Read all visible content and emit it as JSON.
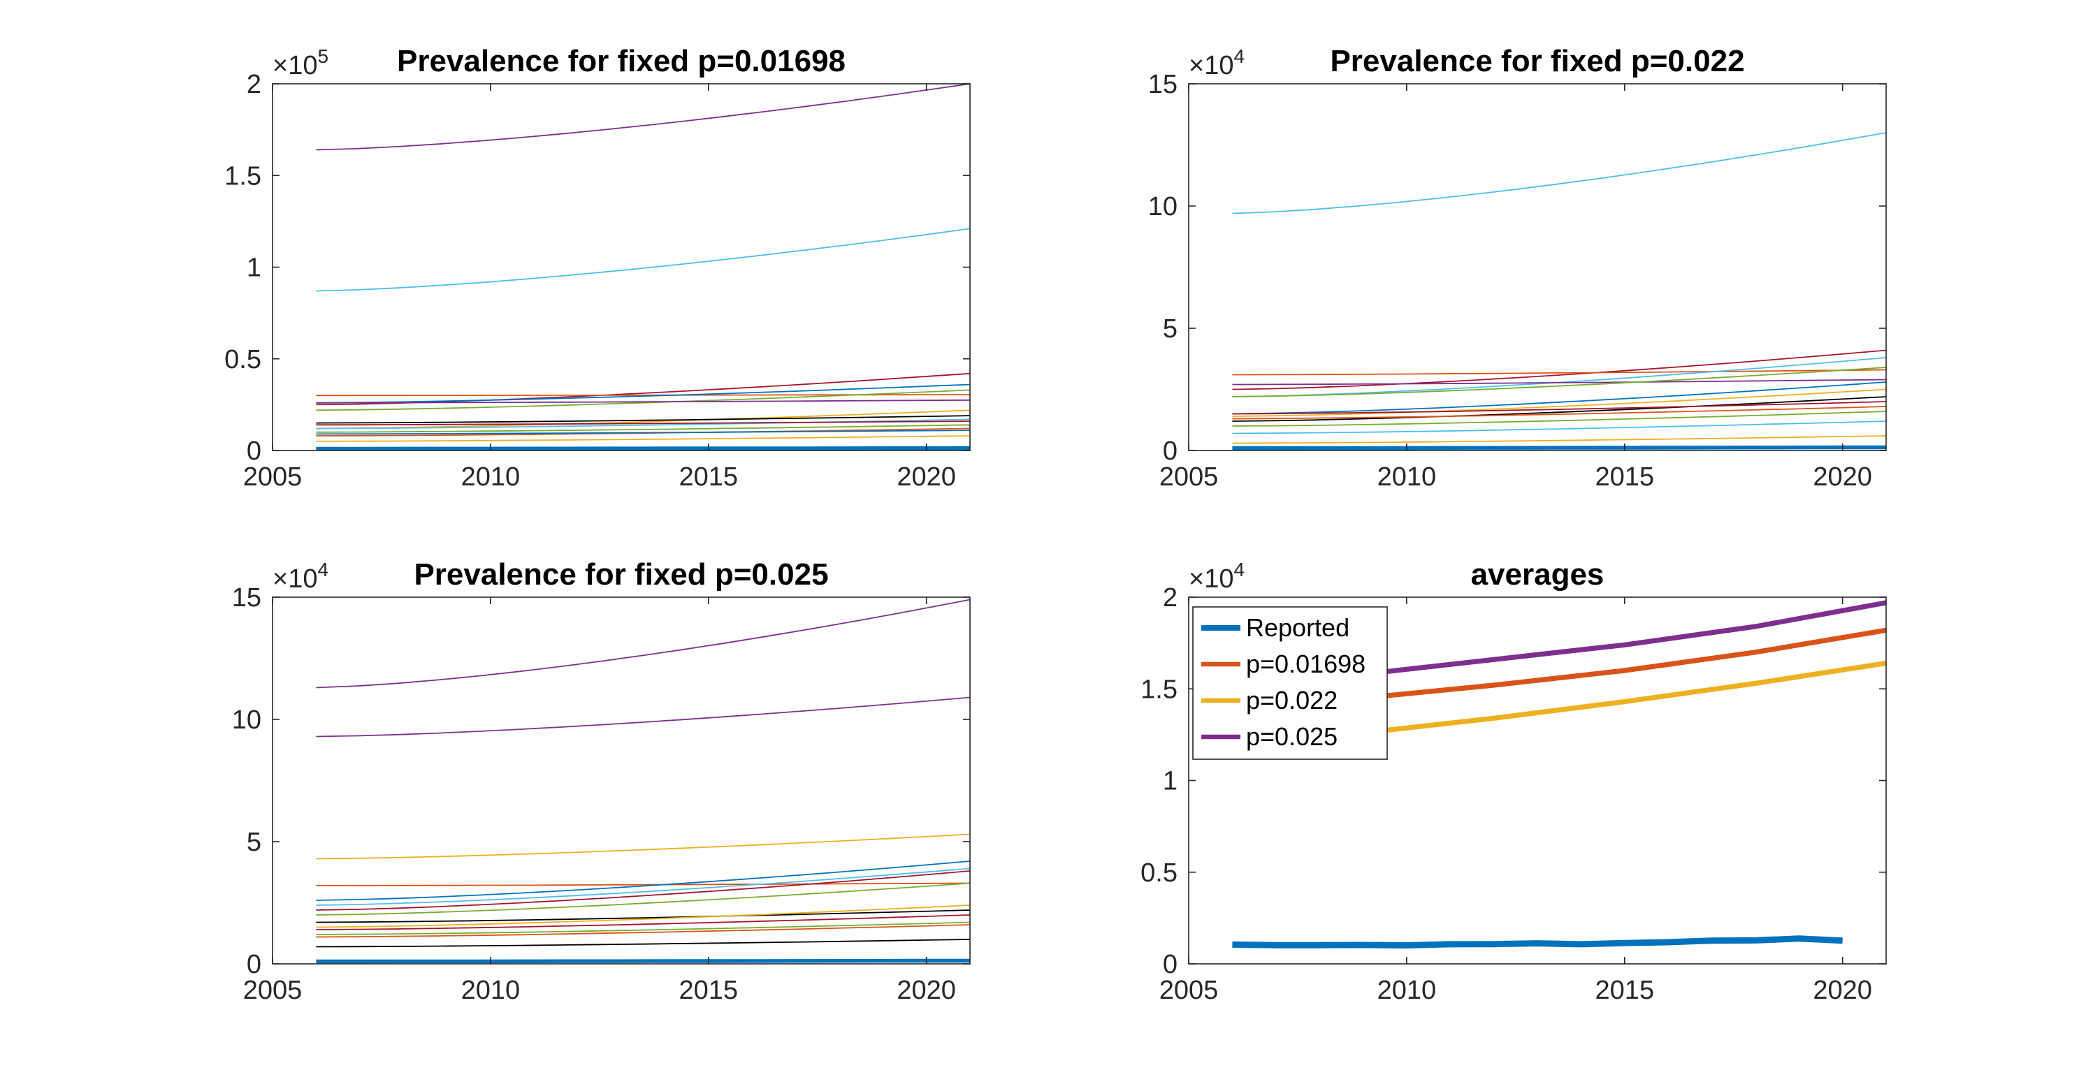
{
  "chart_data": [
    {
      "type": "line",
      "title": "Prevalence for fixed p=0.01698",
      "xlim": [
        2005,
        2021
      ],
      "ylim": [
        0,
        200000
      ],
      "exponent": "5",
      "x_ticks": [
        2005,
        2010,
        2015,
        2020
      ],
      "y_ticks": [
        0,
        50000,
        100000,
        150000,
        200000
      ],
      "x_tick_labels": [
        "2005",
        "2010",
        "2015",
        "2020"
      ],
      "y_tick_labels": [
        "0",
        "0.5",
        "1",
        "1.5",
        "2"
      ],
      "x": [
        2006,
        2021
      ],
      "series": [
        {
          "color": "#7E2F8E",
          "width": 1,
          "values": [
            164000,
            200000
          ]
        },
        {
          "color": "#4DBEEE",
          "width": 1,
          "values": [
            87000,
            121000
          ]
        },
        {
          "color": "#A2142F",
          "width": 1,
          "values": [
            25000,
            42000
          ]
        },
        {
          "color": "#D95319",
          "width": 1,
          "values": [
            30000,
            30500
          ]
        },
        {
          "color": "#0072BD",
          "width": 1,
          "values": [
            26000,
            36000
          ]
        },
        {
          "color": "#77AC30",
          "width": 1,
          "values": [
            22000,
            33000
          ]
        },
        {
          "color": "#7E2F8E",
          "width": 1,
          "values": [
            26000,
            27500
          ]
        },
        {
          "color": "#EDB120",
          "width": 1,
          "values": [
            12000,
            22000
          ]
        },
        {
          "color": "#000000",
          "width": 1,
          "values": [
            15000,
            19000
          ]
        },
        {
          "color": "#4DBEEE",
          "width": 1,
          "values": [
            12000,
            17000
          ]
        },
        {
          "color": "#A2142F",
          "width": 1,
          "values": [
            14000,
            16000
          ]
        },
        {
          "color": "#77AC30",
          "width": 1,
          "values": [
            10000,
            14000
          ]
        },
        {
          "color": "#D95319",
          "width": 1,
          "values": [
            8000,
            12000
          ]
        },
        {
          "color": "#EDB120",
          "width": 1,
          "values": [
            5000,
            8000
          ]
        },
        {
          "color": "#0072BD",
          "width": 1,
          "values": [
            9000,
            11000
          ]
        },
        {
          "color": "#0072BD",
          "width": 3,
          "values": [
            1000,
            1300
          ]
        }
      ]
    },
    {
      "type": "line",
      "title": "Prevalence for fixed p=0.022",
      "xlim": [
        2005,
        2021
      ],
      "ylim": [
        0,
        150000
      ],
      "exponent": "4",
      "x_ticks": [
        2005,
        2010,
        2015,
        2020
      ],
      "y_ticks": [
        0,
        50000,
        100000,
        150000
      ],
      "x_tick_labels": [
        "2005",
        "2010",
        "2015",
        "2020"
      ],
      "y_tick_labels": [
        "0",
        "5",
        "10",
        "15"
      ],
      "x": [
        2006,
        2021
      ],
      "series": [
        {
          "color": "#4DBEEE",
          "width": 1,
          "values": [
            97000,
            130000
          ]
        },
        {
          "color": "#A2142F",
          "width": 1,
          "values": [
            25000,
            41000
          ]
        },
        {
          "color": "#D95319",
          "width": 1,
          "values": [
            31000,
            33000
          ]
        },
        {
          "color": "#4DBEEE",
          "width": 1,
          "values": [
            22000,
            38000
          ]
        },
        {
          "color": "#7E2F8E",
          "width": 1,
          "values": [
            27000,
            29000
          ]
        },
        {
          "color": "#77AC30",
          "width": 1,
          "values": [
            22000,
            34000
          ]
        },
        {
          "color": "#0072BD",
          "width": 1,
          "values": [
            15000,
            28000
          ]
        },
        {
          "color": "#EDB120",
          "width": 1,
          "values": [
            14000,
            25000
          ]
        },
        {
          "color": "#000000",
          "width": 1,
          "values": [
            12000,
            22000
          ]
        },
        {
          "color": "#A2142F",
          "width": 1,
          "values": [
            15000,
            20000
          ]
        },
        {
          "color": "#77AC30",
          "width": 1,
          "values": [
            10000,
            16000
          ]
        },
        {
          "color": "#D95319",
          "width": 1,
          "values": [
            13000,
            18000
          ]
        },
        {
          "color": "#4DBEEE",
          "width": 1,
          "values": [
            7000,
            12000
          ]
        },
        {
          "color": "#EDB120",
          "width": 1,
          "values": [
            3000,
            6000
          ]
        },
        {
          "color": "#0072BD",
          "width": 3,
          "values": [
            1000,
            1300
          ]
        }
      ]
    },
    {
      "type": "line",
      "title": "Prevalence for fixed p=0.025",
      "xlim": [
        2005,
        2021
      ],
      "ylim": [
        0,
        150000
      ],
      "exponent": "4",
      "x_ticks": [
        2005,
        2010,
        2015,
        2020
      ],
      "y_ticks": [
        0,
        50000,
        100000,
        150000
      ],
      "x_tick_labels": [
        "2005",
        "2010",
        "2015",
        "2020"
      ],
      "y_tick_labels": [
        "0",
        "5",
        "10",
        "15"
      ],
      "x": [
        2006,
        2021
      ],
      "series": [
        {
          "color": "#7E2F8E",
          "width": 1,
          "values": [
            113000,
            149000
          ]
        },
        {
          "color": "#7E2F8E",
          "width": 1,
          "values": [
            93000,
            109000
          ]
        },
        {
          "color": "#EDB120",
          "width": 1,
          "values": [
            43000,
            53000
          ]
        },
        {
          "color": "#D95319",
          "width": 1,
          "values": [
            32000,
            33000
          ]
        },
        {
          "color": "#0072BD",
          "width": 1,
          "values": [
            26000,
            42000
          ]
        },
        {
          "color": "#4DBEEE",
          "width": 1,
          "values": [
            24000,
            39000
          ]
        },
        {
          "color": "#A2142F",
          "width": 1,
          "values": [
            22000,
            38000
          ]
        },
        {
          "color": "#77AC30",
          "width": 1,
          "values": [
            20000,
            33000
          ]
        },
        {
          "color": "#000000",
          "width": 1,
          "values": [
            17000,
            22000
          ]
        },
        {
          "color": "#EDB120",
          "width": 1,
          "values": [
            15000,
            24000
          ]
        },
        {
          "color": "#A2142F",
          "width": 1,
          "values": [
            14000,
            20000
          ]
        },
        {
          "color": "#77AC30",
          "width": 1,
          "values": [
            12000,
            17000
          ]
        },
        {
          "color": "#D95319",
          "width": 1,
          "values": [
            11000,
            16000
          ]
        },
        {
          "color": "#000000",
          "width": 1,
          "values": [
            7000,
            10000
          ]
        },
        {
          "color": "#0072BD",
          "width": 3,
          "values": [
            1000,
            1300
          ]
        }
      ]
    },
    {
      "type": "line",
      "title": "averages",
      "xlim": [
        2005,
        2021
      ],
      "ylim": [
        0,
        20000
      ],
      "exponent": "4",
      "x_ticks": [
        2005,
        2010,
        2015,
        2020
      ],
      "y_ticks": [
        0,
        5000,
        10000,
        15000,
        20000
      ],
      "x_tick_labels": [
        "2005",
        "2010",
        "2015",
        "2020"
      ],
      "y_tick_labels": [
        "0",
        "0.5",
        "1",
        "1.5",
        "2"
      ],
      "legend_position": "top-left",
      "series": [
        {
          "name": "Reported",
          "color": "#0072BD",
          "width": 5,
          "x": [
            2006,
            2007,
            2008,
            2009,
            2010,
            2011,
            2012,
            2013,
            2014,
            2015,
            2016,
            2017,
            2018,
            2019,
            2020
          ],
          "values": [
            1050,
            1020,
            1020,
            1030,
            1010,
            1070,
            1080,
            1120,
            1070,
            1130,
            1180,
            1270,
            1280,
            1380,
            1270
          ]
        },
        {
          "name": "p=0.01698",
          "color": "#D95319",
          "width": 4,
          "x": [
            2006,
            2009,
            2012,
            2015,
            2018,
            2021
          ],
          "values": [
            14000,
            14500,
            15200,
            16000,
            17000,
            18200
          ]
        },
        {
          "name": "p=0.022",
          "color": "#EDB120",
          "width": 4,
          "x": [
            2006,
            2009,
            2012,
            2015,
            2018,
            2021
          ],
          "values": [
            12100,
            12600,
            13400,
            14300,
            15300,
            16400
          ]
        },
        {
          "name": "p=0.025",
          "color": "#7E2F8E",
          "width": 4,
          "x": [
            2006,
            2009,
            2012,
            2015,
            2018,
            2021
          ],
          "values": [
            15400,
            15800,
            16600,
            17400,
            18400,
            19700
          ]
        }
      ]
    }
  ]
}
